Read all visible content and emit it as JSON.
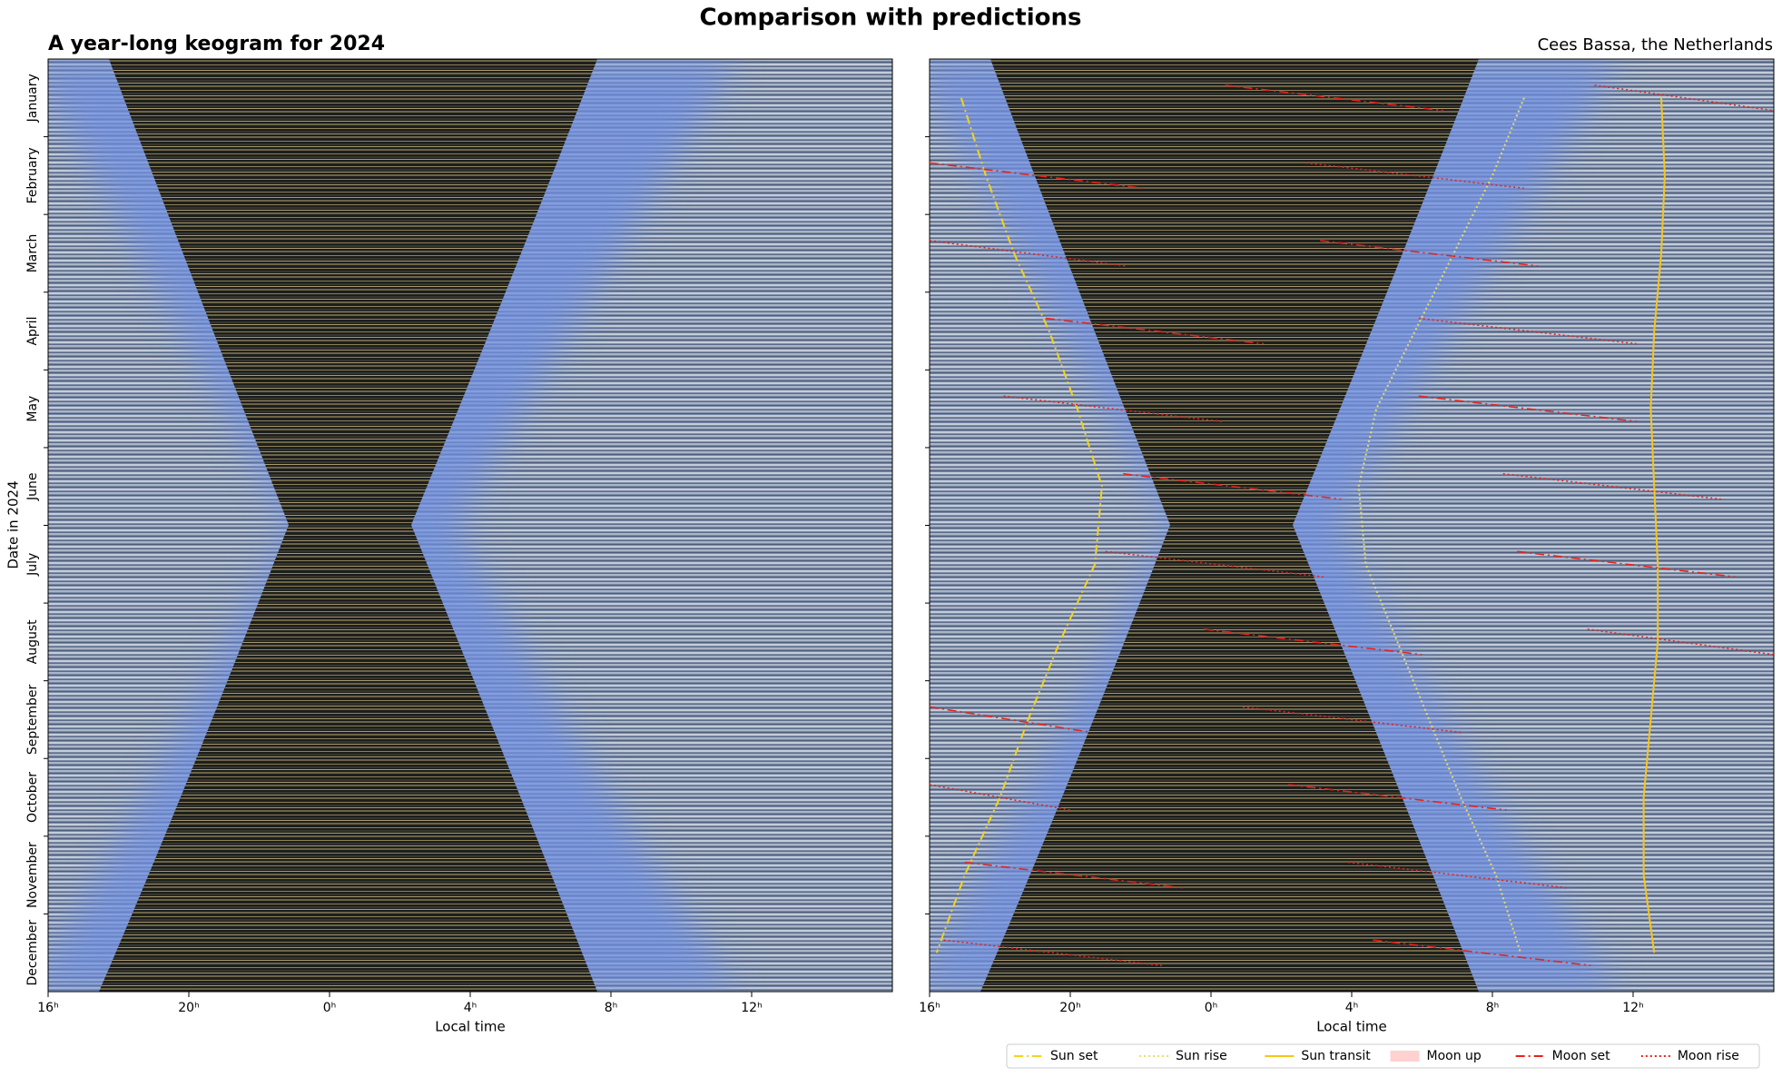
{
  "title": "Comparison with predictions",
  "chart_data": [
    {
      "type": "keogram",
      "title": "A year-long keogram for 2024",
      "x_label": "Local time",
      "y_label": "Date in 2024",
      "categories": [
        "January",
        "February",
        "March",
        "April",
        "May",
        "June",
        "July",
        "August",
        "September",
        "October",
        "November",
        "December"
      ],
      "xlim": [
        16,
        40
      ],
      "xticks": [
        {
          "value": 16,
          "label": "16ʰ"
        },
        {
          "value": 20,
          "label": "20ʰ"
        },
        {
          "value": 24,
          "label": "0ʰ"
        },
        {
          "value": 28,
          "label": "4ʰ"
        },
        {
          "value": 32,
          "label": "8ʰ"
        },
        {
          "value": 36,
          "label": "12ʰ"
        }
      ]
    },
    {
      "type": "keogram",
      "subtitle": "Cees Bassa, the Netherlands",
      "x_label": "Local time",
      "xlim": [
        16,
        40
      ],
      "xticks": [
        {
          "value": 16,
          "label": "16ʰ"
        },
        {
          "value": 20,
          "label": "20ʰ"
        },
        {
          "value": 24,
          "label": "0ʰ"
        },
        {
          "value": 28,
          "label": "4ʰ"
        },
        {
          "value": 32,
          "label": "8ʰ"
        },
        {
          "value": 36,
          "label": "12ʰ"
        }
      ],
      "legend": "below",
      "series": [
        {
          "name": "Sun set",
          "color": "#f5d31a",
          "style": "dashdot",
          "values": [
            16.9,
            17.6,
            18.4,
            19.4,
            20.2,
            20.9,
            20.7,
            19.7,
            18.8,
            18.0,
            17.0,
            16.2
          ]
        },
        {
          "name": "Sun rise",
          "color": "#e8dd6a",
          "style": "dotted",
          "values": [
            32.9,
            32.0,
            30.9,
            29.8,
            28.7,
            28.2,
            28.4,
            29.3,
            30.2,
            31.1,
            32.1,
            32.8
          ]
        },
        {
          "name": "Sun transit",
          "color": "#f5c518",
          "style": "solid",
          "values": [
            36.8,
            36.9,
            36.8,
            36.6,
            36.5,
            36.6,
            36.7,
            36.7,
            36.5,
            36.3,
            36.3,
            36.6
          ]
        },
        {
          "name": "Moon up",
          "color": "#ffb3b3",
          "style": "fill"
        },
        {
          "name": "Moon set",
          "color": "#e8221c",
          "style": "dashdot",
          "values": [
            27.5,
            19.0,
            30.2,
            22.4,
            33.0,
            24.6,
            35.8,
            26.9,
            17.5,
            29.3,
            20.1,
            31.7
          ]
        },
        {
          "name": "Moon rise",
          "color": "#e8221c",
          "style": "dotted",
          "values": [
            38.0,
            29.8,
            18.5,
            33.0,
            21.2,
            35.4,
            24.1,
            37.8,
            28.0,
            16.9,
            31.0,
            19.5
          ]
        }
      ]
    }
  ]
}
